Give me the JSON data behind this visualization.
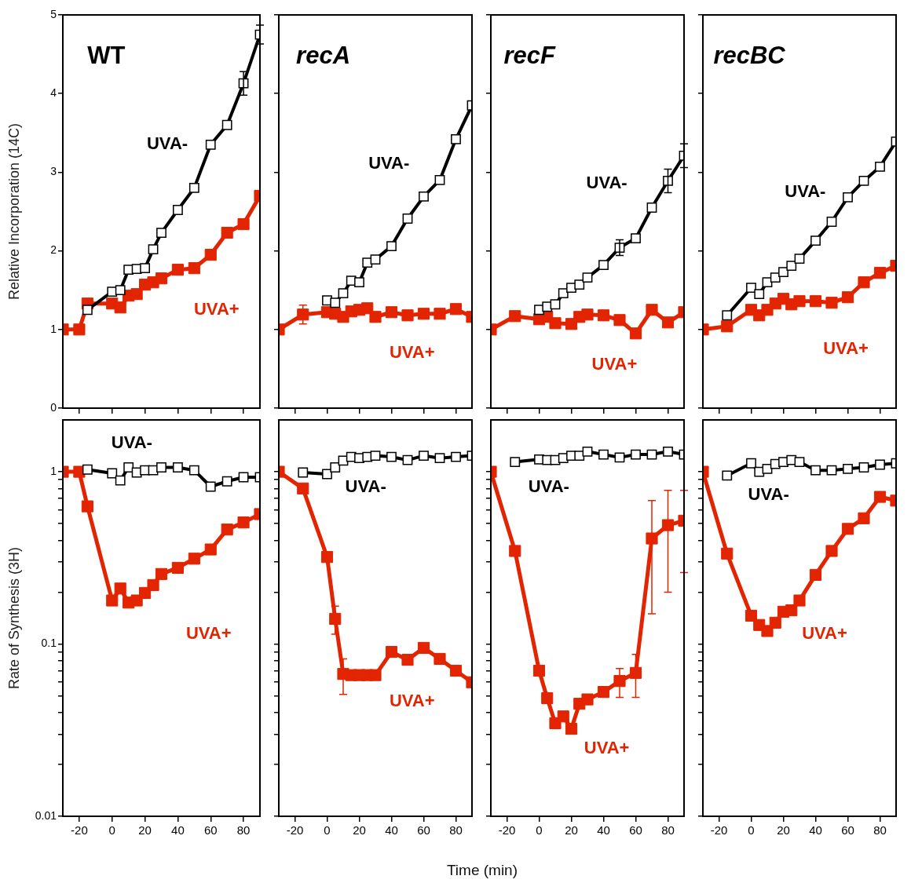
{
  "chart_data": [
    {
      "type": "line",
      "title": "WT",
      "ylabel": "Relative Incorporation (14C)",
      "xlim": [
        -30,
        90
      ],
      "ylim": [
        0,
        5
      ],
      "xticks": [
        -20,
        0,
        20,
        40,
        60,
        80
      ],
      "yticks": [
        0,
        1,
        2,
        3,
        4,
        5
      ],
      "tick_labels": "y",
      "marker": "square",
      "series": [
        {
          "name": "UVA-",
          "color": "#000000",
          "x": [
            -15,
            0,
            5,
            10,
            15,
            20,
            25,
            30,
            40,
            50,
            60,
            70,
            80,
            90
          ],
          "values": [
            1.25,
            1.48,
            1.5,
            1.76,
            1.77,
            1.78,
            2.02,
            2.23,
            2.52,
            2.8,
            3.35,
            3.6,
            4.13,
            4.75
          ],
          "errors": [
            null,
            null,
            null,
            null,
            null,
            null,
            null,
            null,
            null,
            null,
            null,
            null,
            0.15,
            0.12
          ]
        },
        {
          "name": "UVA+",
          "color": "#e32400",
          "x": [
            -30,
            -20,
            -15,
            0,
            5,
            10,
            15,
            20,
            25,
            30,
            40,
            50,
            60,
            70,
            80,
            90
          ],
          "values": [
            1.0,
            1.0,
            1.33,
            1.33,
            1.28,
            1.43,
            1.45,
            1.57,
            1.6,
            1.65,
            1.76,
            1.78,
            1.95,
            2.23,
            2.34,
            2.7
          ]
        }
      ]
    },
    {
      "type": "line",
      "title": "recA",
      "xlim": [
        -30,
        90
      ],
      "ylim": [
        0,
        5
      ],
      "xticks": [
        -20,
        0,
        20,
        40,
        60,
        80
      ],
      "yticks": [
        0,
        1,
        2,
        3,
        4,
        5
      ],
      "tick_labels": false,
      "marker": "square",
      "series": [
        {
          "name": "UVA-",
          "color": "#000000",
          "x": [
            0,
            5,
            10,
            15,
            20,
            25,
            30,
            40,
            50,
            60,
            70,
            80,
            90
          ],
          "values": [
            1.37,
            1.34,
            1.46,
            1.62,
            1.6,
            1.85,
            1.89,
            2.06,
            2.41,
            2.69,
            2.9,
            3.42,
            3.85
          ]
        },
        {
          "name": "UVA+",
          "color": "#e32400",
          "x": [
            -30,
            -15,
            0,
            5,
            10,
            15,
            20,
            25,
            30,
            40,
            50,
            60,
            70,
            80,
            90
          ],
          "values": [
            1.0,
            1.19,
            1.22,
            1.2,
            1.16,
            1.23,
            1.25,
            1.27,
            1.16,
            1.22,
            1.18,
            1.2,
            1.2,
            1.26,
            1.16
          ],
          "errors": [
            null,
            0.12,
            null,
            null,
            null,
            null,
            null,
            null,
            null,
            null,
            null,
            null,
            null,
            null,
            null
          ]
        }
      ]
    },
    {
      "type": "line",
      "title": "recF",
      "xlim": [
        -30,
        90
      ],
      "ylim": [
        0,
        5
      ],
      "xticks": [
        -20,
        0,
        20,
        40,
        60,
        80
      ],
      "yticks": [
        0,
        1,
        2,
        3,
        4,
        5
      ],
      "tick_labels": false,
      "marker": "square",
      "series": [
        {
          "name": "UVA-",
          "color": "#000000",
          "x": [
            0,
            5,
            10,
            15,
            20,
            25,
            30,
            40,
            50,
            60,
            70,
            80,
            90
          ],
          "values": [
            1.25,
            1.29,
            1.32,
            1.46,
            1.53,
            1.57,
            1.66,
            1.82,
            2.04,
            2.16,
            2.55,
            2.89,
            3.21
          ],
          "errors": [
            null,
            null,
            null,
            null,
            null,
            null,
            null,
            null,
            0.1,
            null,
            null,
            0.15,
            0.15
          ]
        },
        {
          "name": "UVA+",
          "color": "#e32400",
          "x": [
            -30,
            -15,
            0,
            5,
            10,
            20,
            25,
            30,
            40,
            50,
            60,
            70,
            80,
            90
          ],
          "values": [
            1.0,
            1.17,
            1.13,
            1.16,
            1.08,
            1.07,
            1.16,
            1.19,
            1.18,
            1.12,
            0.95,
            1.25,
            1.09,
            1.22
          ]
        }
      ]
    },
    {
      "type": "line",
      "title": "recBC",
      "xlim": [
        -30,
        90
      ],
      "ylim": [
        0,
        5
      ],
      "xticks": [
        -20,
        0,
        20,
        40,
        60,
        80
      ],
      "yticks": [
        0,
        1,
        2,
        3,
        4,
        5
      ],
      "tick_labels": false,
      "marker": "square",
      "series": [
        {
          "name": "UVA-",
          "color": "#000000",
          "x": [
            -15,
            0,
            5,
            10,
            15,
            20,
            25,
            30,
            40,
            50,
            60,
            70,
            80,
            90
          ],
          "values": [
            1.18,
            1.53,
            1.45,
            1.6,
            1.66,
            1.73,
            1.81,
            1.9,
            2.13,
            2.37,
            2.68,
            2.89,
            3.07,
            3.39
          ]
        },
        {
          "name": "UVA+",
          "color": "#e32400",
          "x": [
            -30,
            -15,
            0,
            5,
            10,
            15,
            20,
            25,
            30,
            40,
            50,
            60,
            70,
            80,
            90
          ],
          "values": [
            1.0,
            1.04,
            1.25,
            1.18,
            1.25,
            1.33,
            1.39,
            1.32,
            1.36,
            1.36,
            1.34,
            1.41,
            1.6,
            1.72,
            1.81
          ]
        }
      ]
    },
    {
      "type": "line",
      "ylabel": "Rate of Synthesis (3H)",
      "log": true,
      "xlim": [
        -30,
        90
      ],
      "ylim": [
        0.01,
        2
      ],
      "xticks": [
        -20,
        0,
        20,
        40,
        60,
        80
      ],
      "yticks": [
        0.01,
        {
          "value": 0.02,
          "label": null
        },
        {
          "value": 0.03,
          "label": null
        },
        {
          "value": 0.04,
          "label": null
        },
        {
          "value": 0.05,
          "label": null
        },
        {
          "value": 0.06,
          "label": null
        },
        {
          "value": 0.07,
          "label": null
        },
        {
          "value": 0.08,
          "label": null
        },
        {
          "value": 0.09,
          "label": null
        },
        0.1,
        {
          "value": 0.2,
          "label": null
        },
        {
          "value": 0.3,
          "label": null
        },
        {
          "value": 0.4,
          "label": null
        },
        {
          "value": 0.5,
          "label": null
        },
        {
          "value": 0.6,
          "label": null
        },
        {
          "value": 0.7,
          "label": null
        },
        {
          "value": 0.8,
          "label": null
        },
        {
          "value": 0.9,
          "label": null
        },
        1
      ],
      "marker": "square",
      "series": [
        {
          "name": "UVA-",
          "color": "#000000",
          "x": [
            -15,
            0,
            5,
            10,
            15,
            20,
            25,
            30,
            40,
            50,
            60,
            70,
            80,
            90
          ],
          "values": [
            1.03,
            0.98,
            0.89,
            1.06,
            0.99,
            1.02,
            1.02,
            1.06,
            1.06,
            1.02,
            0.82,
            0.88,
            0.93,
            0.93
          ]
        },
        {
          "name": "UVA+",
          "color": "#e32400",
          "x": [
            -30,
            -20,
            -15,
            0,
            5,
            10,
            15,
            20,
            25,
            30,
            40,
            50,
            60,
            70,
            80,
            90
          ],
          "values": [
            1.0,
            1.0,
            0.63,
            0.179,
            0.21,
            0.174,
            0.179,
            0.198,
            0.22,
            0.255,
            0.277,
            0.313,
            0.354,
            0.462,
            0.508,
            0.568
          ]
        }
      ]
    },
    {
      "type": "line",
      "xlabel": "Time (min)",
      "log": true,
      "xlim": [
        -30,
        90
      ],
      "ylim": [
        0.01,
        2
      ],
      "xticks": [
        -20,
        0,
        20,
        40,
        60,
        80
      ],
      "yticks": [
        0.01,
        {
          "value": 0.02,
          "label": null
        },
        {
          "value": 0.03,
          "label": null
        },
        {
          "value": 0.04,
          "label": null
        },
        {
          "value": 0.05,
          "label": null
        },
        {
          "value": 0.06,
          "label": null
        },
        {
          "value": 0.07,
          "label": null
        },
        {
          "value": 0.08,
          "label": null
        },
        {
          "value": 0.09,
          "label": null
        },
        0.1,
        {
          "value": 0.2,
          "label": null
        },
        {
          "value": 0.3,
          "label": null
        },
        {
          "value": 0.4,
          "label": null
        },
        {
          "value": 0.5,
          "label": null
        },
        {
          "value": 0.6,
          "label": null
        },
        {
          "value": 0.7,
          "label": null
        },
        {
          "value": 0.8,
          "label": null
        },
        {
          "value": 0.9,
          "label": null
        },
        1
      ],
      "tick_labels": "x",
      "marker": "square",
      "series": [
        {
          "name": "UVA-",
          "color": "#000000",
          "x": [
            -15,
            0,
            5,
            10,
            15,
            20,
            25,
            30,
            40,
            50,
            60,
            70,
            80,
            90
          ],
          "values": [
            0.99,
            0.97,
            1.06,
            1.16,
            1.22,
            1.2,
            1.22,
            1.24,
            1.22,
            1.17,
            1.24,
            1.2,
            1.22,
            1.24
          ]
        },
        {
          "name": "UVA+",
          "color": "#e32400",
          "x": [
            -30,
            -15,
            0,
            5,
            10,
            15,
            20,
            25,
            30,
            40,
            50,
            60,
            70,
            80,
            90
          ],
          "values": [
            1.0,
            0.8,
            0.32,
            0.14,
            0.067,
            0.066,
            0.066,
            0.066,
            0.066,
            0.09,
            0.081,
            0.095,
            0.082,
            0.07,
            0.06
          ],
          "errors": [
            null,
            null,
            null,
            [
              0.114,
              0.166
            ],
            [
              0.051,
              0.082
            ],
            null,
            null,
            null,
            null,
            null,
            null,
            null,
            null,
            null,
            null
          ]
        }
      ]
    },
    {
      "type": "line",
      "log": true,
      "xlim": [
        -30,
        90
      ],
      "ylim": [
        0.01,
        2
      ],
      "xticks": [
        -20,
        0,
        20,
        40,
        60,
        80
      ],
      "yticks": [
        0.01,
        {
          "value": 0.02,
          "label": null
        },
        {
          "value": 0.03,
          "label": null
        },
        {
          "value": 0.04,
          "label": null
        },
        {
          "value": 0.05,
          "label": null
        },
        {
          "value": 0.06,
          "label": null
        },
        {
          "value": 0.07,
          "label": null
        },
        {
          "value": 0.08,
          "label": null
        },
        {
          "value": 0.09,
          "label": null
        },
        0.1,
        {
          "value": 0.2,
          "label": null
        },
        {
          "value": 0.3,
          "label": null
        },
        {
          "value": 0.4,
          "label": null
        },
        {
          "value": 0.5,
          "label": null
        },
        {
          "value": 0.6,
          "label": null
        },
        {
          "value": 0.7,
          "label": null
        },
        {
          "value": 0.8,
          "label": null
        },
        {
          "value": 0.9,
          "label": null
        },
        1
      ],
      "tick_labels": "x",
      "marker": "square",
      "series": [
        {
          "name": "UVA-",
          "color": "#000000",
          "x": [
            -15,
            0,
            5,
            10,
            15,
            20,
            25,
            30,
            40,
            50,
            60,
            70,
            80,
            90
          ],
          "values": [
            1.14,
            1.18,
            1.17,
            1.17,
            1.2,
            1.24,
            1.24,
            1.31,
            1.26,
            1.21,
            1.26,
            1.26,
            1.31,
            1.26
          ]
        },
        {
          "name": "UVA+",
          "color": "#e32400",
          "x": [
            -30,
            -15,
            0,
            5,
            10,
            15,
            20,
            25,
            30,
            40,
            50,
            60,
            70,
            80,
            90
          ],
          "values": [
            1.0,
            0.347,
            0.07,
            0.0485,
            0.0347,
            0.038,
            0.0322,
            0.045,
            0.0477,
            0.0527,
            0.061,
            0.068,
            0.41,
            0.49,
            0.52
          ],
          "errors": [
            null,
            null,
            null,
            null,
            null,
            null,
            null,
            null,
            null,
            null,
            [
              0.049,
              0.072
            ],
            [
              0.049,
              0.087
            ],
            [
              0.15,
              0.68
            ],
            [
              0.2,
              0.78
            ],
            [
              0.26,
              0.78
            ]
          ]
        }
      ]
    },
    {
      "type": "line",
      "log": true,
      "xlim": [
        -30,
        90
      ],
      "ylim": [
        0.01,
        2
      ],
      "xticks": [
        -20,
        0,
        20,
        40,
        60,
        80
      ],
      "yticks": [
        0.01,
        {
          "value": 0.02,
          "label": null
        },
        {
          "value": 0.03,
          "label": null
        },
        {
          "value": 0.04,
          "label": null
        },
        {
          "value": 0.05,
          "label": null
        },
        {
          "value": 0.06,
          "label": null
        },
        {
          "value": 0.07,
          "label": null
        },
        {
          "value": 0.08,
          "label": null
        },
        {
          "value": 0.09,
          "label": null
        },
        0.1,
        {
          "value": 0.2,
          "label": null
        },
        {
          "value": 0.3,
          "label": null
        },
        {
          "value": 0.4,
          "label": null
        },
        {
          "value": 0.5,
          "label": null
        },
        {
          "value": 0.6,
          "label": null
        },
        {
          "value": 0.7,
          "label": null
        },
        {
          "value": 0.8,
          "label": null
        },
        {
          "value": 0.9,
          "label": null
        },
        1
      ],
      "tick_labels": "x",
      "marker": "square",
      "series": [
        {
          "name": "UVA-",
          "color": "#000000",
          "x": [
            -15,
            0,
            5,
            10,
            15,
            20,
            25,
            30,
            40,
            50,
            60,
            70,
            80,
            90
          ],
          "values": [
            0.95,
            1.12,
            1.0,
            1.04,
            1.11,
            1.14,
            1.17,
            1.14,
            1.02,
            1.02,
            1.04,
            1.06,
            1.1,
            1.12
          ]
        },
        {
          "name": "UVA+",
          "color": "#e32400",
          "x": [
            -30,
            -15,
            0,
            5,
            10,
            15,
            20,
            25,
            30,
            40,
            50,
            60,
            70,
            80,
            90
          ],
          "values": [
            1.0,
            0.335,
            0.146,
            0.129,
            0.119,
            0.133,
            0.154,
            0.157,
            0.179,
            0.252,
            0.347,
            0.466,
            0.537,
            0.715,
            0.68
          ]
        }
      ]
    }
  ]
}
